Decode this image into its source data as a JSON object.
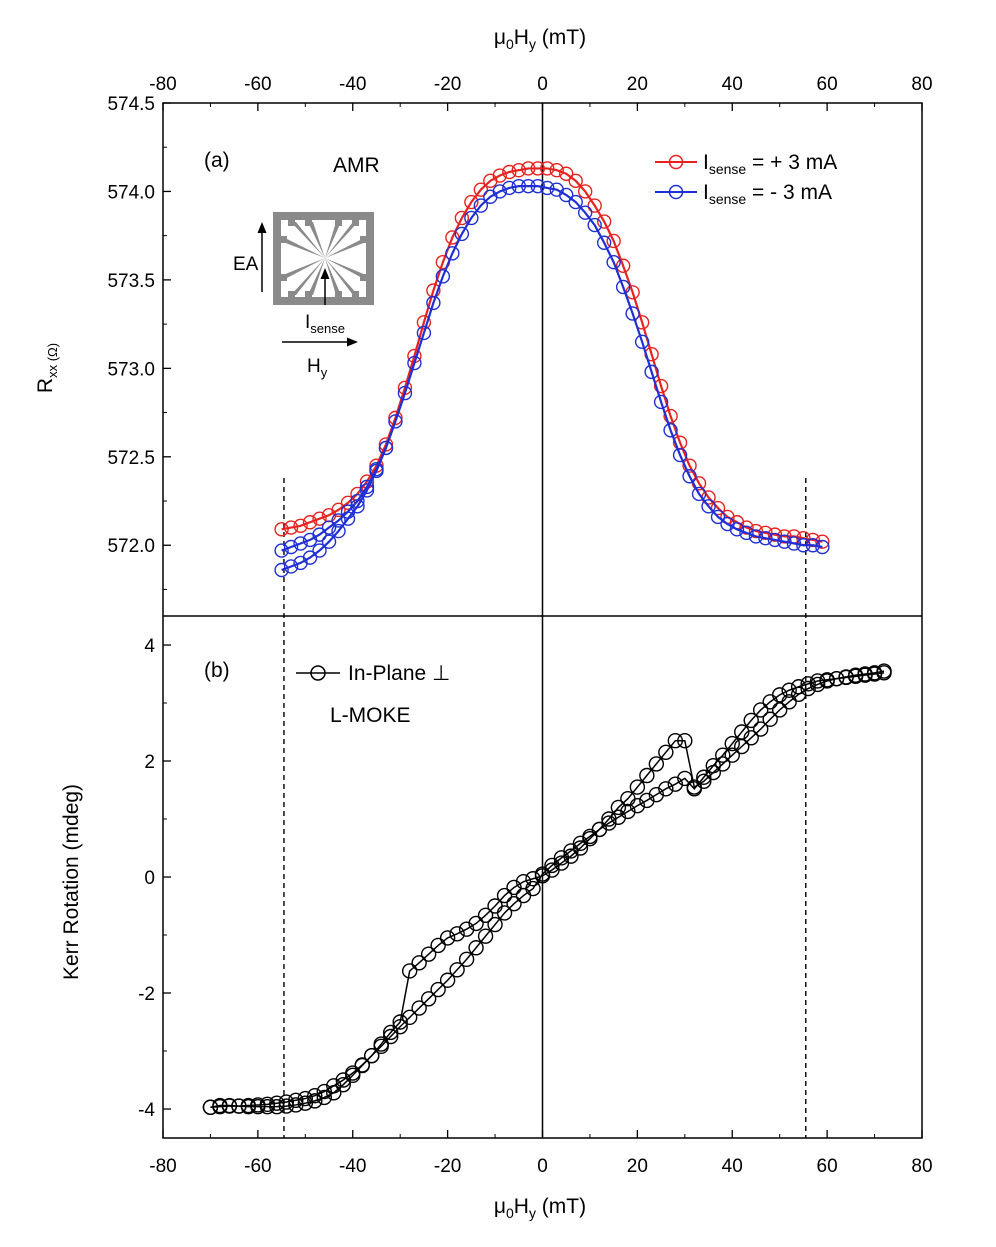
{
  "figure": {
    "top_axis_label": {
      "main": "μ",
      "sub0": "0",
      "main2": "H",
      "sub1": "y",
      "unit": " (mT)"
    },
    "bottom_axis_label": {
      "main": "μ",
      "sub0": "0",
      "main2": "H",
      "sub1": "y",
      "unit": " (mT)"
    },
    "x_ticks": [
      "-80",
      "-60",
      "-40",
      "-20",
      "0",
      "20",
      "40",
      "60",
      "80"
    ]
  },
  "chart_data": [
    {
      "type": "line",
      "panel_label": "(a)",
      "annotation": "AMR",
      "ylabel": {
        "main": "R",
        "sub": "xx (Ω)"
      },
      "xlim": [
        -80,
        80
      ],
      "ylim": [
        571.6,
        574.5
      ],
      "y_ticks": [
        "572.0",
        "572.5",
        "573.0",
        "573.5",
        "574.0",
        "574.5"
      ],
      "dashed_lines_x": [
        -54.5,
        55.5
      ],
      "legend_position": "top-right",
      "inset": {
        "easy_axis_label": "EA",
        "current_label": "I",
        "current_sub": "sense",
        "field_label": "H",
        "field_sub": "y"
      },
      "series": [
        {
          "name": "I_sense = + 3 mA",
          "legend": {
            "main": "I",
            "sub": "sense",
            "rest": " = + 3 mA"
          },
          "color": "#e8231f",
          "x": [
            -55,
            -53,
            -51,
            -49,
            -47,
            -45,
            -43,
            -41,
            -39,
            -37,
            -35,
            -33,
            -31,
            -29,
            -27,
            -25,
            -23,
            -21,
            -19,
            -17,
            -15,
            -13,
            -11,
            -9,
            -7,
            -5,
            -3,
            -1,
            1,
            3,
            5,
            7,
            9,
            11,
            13,
            15,
            17,
            19,
            21,
            23,
            25,
            27,
            29,
            31,
            33,
            35,
            37,
            39,
            41,
            43,
            45,
            47,
            49,
            51,
            53,
            55,
            57,
            59
          ],
          "y": [
            572.09,
            572.1,
            572.11,
            572.13,
            572.15,
            572.17,
            572.2,
            572.24,
            572.29,
            572.36,
            572.45,
            572.57,
            572.72,
            572.89,
            573.07,
            573.26,
            573.44,
            573.6,
            573.74,
            573.85,
            573.94,
            574.01,
            574.06,
            574.09,
            574.11,
            574.12,
            574.13,
            574.13,
            574.13,
            574.12,
            574.1,
            574.06,
            574.0,
            573.92,
            573.83,
            573.72,
            573.58,
            573.43,
            573.26,
            573.08,
            572.9,
            572.73,
            572.58,
            572.45,
            572.35,
            572.27,
            572.21,
            572.16,
            572.13,
            572.1,
            572.08,
            572.07,
            572.06,
            572.05,
            572.05,
            572.04,
            572.03,
            572.02
          ]
        },
        {
          "name": "I_sense = - 3 mA",
          "legend": {
            "main": "I",
            "sub": "sense",
            "rest": " = - 3 mA"
          },
          "color": "#1f2fd6",
          "x": [
            -55,
            -53,
            -51,
            -49,
            -47,
            -45,
            -43,
            -41,
            -39,
            -37,
            -35,
            -33,
            -31,
            -29,
            -27,
            -25,
            -23,
            -21,
            -19,
            -17,
            -15,
            -13,
            -11,
            -9,
            -7,
            -5,
            -3,
            -1,
            1,
            3,
            5,
            7,
            9,
            11,
            13,
            15,
            17,
            19,
            21,
            23,
            25,
            27,
            29,
            31,
            33,
            35,
            37,
            39,
            41,
            43,
            45,
            47,
            49,
            51,
            53,
            55,
            57,
            59
          ],
          "y": [
            571.97,
            571.99,
            572.01,
            572.03,
            572.06,
            572.1,
            572.14,
            572.19,
            572.25,
            572.33,
            572.43,
            572.55,
            572.7,
            572.86,
            573.03,
            573.2,
            573.37,
            573.52,
            573.65,
            573.76,
            573.85,
            573.92,
            573.97,
            574.0,
            574.02,
            574.03,
            574.03,
            574.03,
            574.02,
            574.01,
            573.98,
            573.94,
            573.88,
            573.81,
            573.71,
            573.6,
            573.46,
            573.31,
            573.15,
            572.98,
            572.81,
            572.65,
            572.51,
            572.39,
            572.29,
            572.22,
            572.16,
            572.12,
            572.09,
            572.07,
            572.05,
            572.04,
            572.03,
            572.02,
            572.01,
            572.0,
            572.0,
            571.99
          ]
        },
        {
          "name": "I_sense = - 3 mA (lower branch)",
          "color": "#1f2fd6",
          "x": [
            -55,
            -53,
            -51,
            -49,
            -47,
            -45,
            -43,
            -41,
            -39,
            -37,
            -35,
            -33
          ],
          "y": [
            571.86,
            571.88,
            571.9,
            571.93,
            571.97,
            572.02,
            572.08,
            572.15,
            572.22,
            572.31,
            572.42,
            572.55
          ]
        }
      ]
    },
    {
      "type": "line",
      "panel_label": "(b)",
      "annotation": "L-MOKE",
      "ylabel": "Kerr Rotation (mdeg)",
      "xlim": [
        -80,
        80
      ],
      "ylim": [
        -4.5,
        4.5
      ],
      "y_ticks": [
        "-4",
        "-2",
        "0",
        "2",
        "4"
      ],
      "dashed_lines_x": [
        -54.5,
        55.5
      ],
      "legend_position": "top-left",
      "series": [
        {
          "name": "In-Plane ⊥",
          "color": "#000000",
          "branches": [
            {
              "x": [
                72,
                70,
                68,
                66,
                64,
                62,
                60,
                58,
                56,
                54,
                52,
                50,
                48,
                46,
                44,
                42,
                40,
                38,
                36,
                34,
                32,
                30,
                28,
                26,
                24,
                22,
                20,
                18,
                16,
                14,
                12,
                10,
                8,
                6,
                4,
                2,
                0,
                -2,
                -4,
                -6,
                -8,
                -10,
                -12,
                -14,
                -16,
                -18,
                -20,
                -22,
                -24,
                -26,
                -28,
                -30,
                -32,
                -34,
                -36,
                -38,
                -40,
                -42,
                -44,
                -46,
                -48,
                -50,
                -52,
                -54,
                -56,
                -58,
                -60,
                -62,
                -64,
                -66,
                -68,
                -70
              ],
              "y": [
                3.55,
                3.52,
                3.5,
                3.48,
                3.45,
                3.42,
                3.38,
                3.32,
                3.25,
                3.15,
                3.02,
                2.88,
                2.72,
                2.55,
                2.4,
                2.25,
                2.1,
                1.95,
                1.8,
                1.65,
                1.55,
                2.35,
                2.35,
                2.15,
                1.95,
                1.75,
                1.55,
                1.35,
                1.2,
                1.0,
                0.82,
                0.66,
                0.5,
                0.36,
                0.24,
                0.12,
                0.02,
                -0.03,
                -0.08,
                -0.18,
                -0.32,
                -0.5,
                -0.66,
                -0.8,
                -0.9,
                -0.98,
                -1.05,
                -1.18,
                -1.33,
                -1.48,
                -1.62,
                -2.5,
                -2.68,
                -2.88,
                -3.08,
                -3.25,
                -3.42,
                -3.58,
                -3.72,
                -3.8,
                -3.86,
                -3.9,
                -3.93,
                -3.95,
                -3.96,
                -3.96,
                -3.96,
                -3.96,
                -3.95,
                -3.94,
                -3.94,
                -3.97
              ]
            },
            {
              "x": [
                -70,
                -68,
                -66,
                -64,
                -62,
                -60,
                -58,
                -56,
                -54,
                -52,
                -50,
                -48,
                -46,
                -44,
                -42,
                -40,
                -38,
                -36,
                -34,
                -32,
                -30,
                -28,
                -26,
                -24,
                -22,
                -20,
                -18,
                -16,
                -14,
                -12,
                -10,
                -8,
                -6,
                -4,
                -2,
                0,
                2,
                4,
                6,
                8,
                10,
                12,
                14,
                16,
                18,
                20,
                22,
                24,
                26,
                28,
                30,
                32,
                34,
                36,
                38,
                40,
                42,
                44,
                46,
                48,
                50,
                52,
                54,
                56,
                58,
                60,
                62,
                64,
                66,
                68,
                70,
                72
              ],
              "y": [
                -3.97,
                -3.96,
                -3.95,
                -3.95,
                -3.94,
                -3.93,
                -3.92,
                -3.9,
                -3.88,
                -3.85,
                -3.82,
                -3.77,
                -3.7,
                -3.6,
                -3.5,
                -3.38,
                -3.24,
                -3.08,
                -2.92,
                -2.75,
                -2.58,
                -2.42,
                -2.26,
                -2.1,
                -1.94,
                -1.78,
                -1.6,
                -1.42,
                -1.22,
                -1.02,
                -0.82,
                -0.62,
                -0.46,
                -0.32,
                -0.2,
                0.05,
                0.2,
                0.33,
                0.45,
                0.58,
                0.7,
                0.82,
                0.93,
                1.03,
                1.13,
                1.23,
                1.32,
                1.42,
                1.52,
                1.6,
                1.7,
                1.52,
                1.72,
                1.92,
                2.1,
                2.3,
                2.5,
                2.7,
                2.88,
                3.02,
                3.14,
                3.22,
                3.28,
                3.33,
                3.38,
                3.4,
                3.42,
                3.44,
                3.46,
                3.48,
                3.5,
                3.52
              ]
            }
          ]
        }
      ]
    }
  ]
}
